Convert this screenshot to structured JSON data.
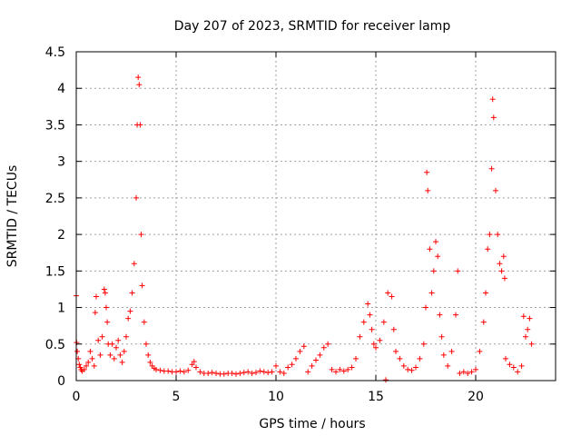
{
  "chart_data": {
    "type": "scatter",
    "title": "Day 207 of 2023, SRMTID for receiver lamp",
    "xlabel": "GPS time / hours",
    "ylabel": "SRMTID / TECUs",
    "xlim": [
      0,
      24
    ],
    "ylim": [
      0,
      4.5
    ],
    "grid": true,
    "marker": "+",
    "color": "#ff0000",
    "x_ticks": [
      0,
      5,
      10,
      15,
      20
    ],
    "x_tick_labels": [
      "0",
      "5",
      "10",
      "15",
      "20"
    ],
    "y_ticks": [
      0,
      0.5,
      1,
      1.5,
      2,
      2.5,
      3,
      3.5,
      4,
      4.5
    ],
    "y_tick_labels": [
      "0",
      "0.5",
      "1",
      "1.5",
      "2",
      "2.5",
      "3",
      "3.5",
      "4",
      "4.5"
    ],
    "series": [
      {
        "name": "SRMTID",
        "points": [
          [
            0.0,
            1.16
          ],
          [
            0.02,
            0.52
          ],
          [
            0.05,
            0.4
          ],
          [
            0.1,
            0.3
          ],
          [
            0.15,
            0.22
          ],
          [
            0.2,
            0.18
          ],
          [
            0.25,
            0.15
          ],
          [
            0.3,
            0.13
          ],
          [
            0.4,
            0.15
          ],
          [
            0.5,
            0.2
          ],
          [
            0.6,
            0.25
          ],
          [
            0.7,
            0.4
          ],
          [
            0.8,
            0.3
          ],
          [
            0.9,
            0.2
          ],
          [
            0.95,
            0.93
          ],
          [
            1.0,
            1.15
          ],
          [
            1.1,
            0.55
          ],
          [
            1.2,
            0.35
          ],
          [
            1.3,
            0.6
          ],
          [
            1.4,
            1.25
          ],
          [
            1.45,
            1.2
          ],
          [
            1.5,
            1.0
          ],
          [
            1.55,
            0.8
          ],
          [
            1.6,
            0.5
          ],
          [
            1.7,
            0.35
          ],
          [
            1.8,
            0.5
          ],
          [
            1.9,
            0.3
          ],
          [
            2.0,
            0.45
          ],
          [
            2.1,
            0.55
          ],
          [
            2.2,
            0.35
          ],
          [
            2.3,
            0.25
          ],
          [
            2.4,
            0.4
          ],
          [
            2.5,
            0.6
          ],
          [
            2.6,
            0.85
          ],
          [
            2.7,
            0.95
          ],
          [
            2.8,
            1.2
          ],
          [
            2.9,
            1.6
          ],
          [
            3.0,
            2.5
          ],
          [
            3.05,
            3.5
          ],
          [
            3.1,
            4.15
          ],
          [
            3.15,
            4.05
          ],
          [
            3.2,
            3.5
          ],
          [
            3.25,
            2.0
          ],
          [
            3.3,
            1.3
          ],
          [
            3.4,
            0.8
          ],
          [
            3.5,
            0.5
          ],
          [
            3.6,
            0.35
          ],
          [
            3.7,
            0.25
          ],
          [
            3.8,
            0.2
          ],
          [
            3.9,
            0.17
          ],
          [
            4.0,
            0.15
          ],
          [
            4.2,
            0.14
          ],
          [
            4.4,
            0.13
          ],
          [
            4.6,
            0.13
          ],
          [
            4.8,
            0.12
          ],
          [
            5.0,
            0.12
          ],
          [
            5.2,
            0.13
          ],
          [
            5.4,
            0.12
          ],
          [
            5.6,
            0.14
          ],
          [
            5.8,
            0.22
          ],
          [
            5.9,
            0.26
          ],
          [
            6.0,
            0.18
          ],
          [
            6.2,
            0.12
          ],
          [
            6.4,
            0.1
          ],
          [
            6.6,
            0.1
          ],
          [
            6.8,
            0.11
          ],
          [
            7.0,
            0.1
          ],
          [
            7.2,
            0.09
          ],
          [
            7.4,
            0.09
          ],
          [
            7.6,
            0.1
          ],
          [
            7.8,
            0.1
          ],
          [
            8.0,
            0.09
          ],
          [
            8.2,
            0.1
          ],
          [
            8.4,
            0.11
          ],
          [
            8.6,
            0.12
          ],
          [
            8.8,
            0.1
          ],
          [
            9.0,
            0.11
          ],
          [
            9.2,
            0.13
          ],
          [
            9.4,
            0.12
          ],
          [
            9.6,
            0.11
          ],
          [
            9.8,
            0.12
          ],
          [
            10.0,
            0.2
          ],
          [
            10.2,
            0.12
          ],
          [
            10.4,
            0.1
          ],
          [
            10.6,
            0.18
          ],
          [
            10.8,
            0.22
          ],
          [
            11.0,
            0.3
          ],
          [
            11.2,
            0.4
          ],
          [
            11.4,
            0.47
          ],
          [
            11.6,
            0.12
          ],
          [
            11.8,
            0.2
          ],
          [
            12.0,
            0.28
          ],
          [
            12.2,
            0.35
          ],
          [
            12.4,
            0.45
          ],
          [
            12.6,
            0.5
          ],
          [
            12.8,
            0.15
          ],
          [
            13.0,
            0.12
          ],
          [
            13.2,
            0.15
          ],
          [
            13.4,
            0.13
          ],
          [
            13.6,
            0.15
          ],
          [
            13.8,
            0.18
          ],
          [
            14.0,
            0.3
          ],
          [
            14.2,
            0.6
          ],
          [
            14.4,
            0.8
          ],
          [
            14.6,
            1.05
          ],
          [
            14.7,
            0.9
          ],
          [
            14.8,
            0.7
          ],
          [
            14.9,
            0.5
          ],
          [
            15.0,
            0.45
          ],
          [
            15.2,
            0.55
          ],
          [
            15.4,
            0.8
          ],
          [
            15.5,
            0.01
          ],
          [
            15.6,
            1.2
          ],
          [
            15.8,
            1.15
          ],
          [
            15.9,
            0.7
          ],
          [
            16.0,
            0.4
          ],
          [
            16.2,
            0.3
          ],
          [
            16.4,
            0.2
          ],
          [
            16.6,
            0.15
          ],
          [
            16.8,
            0.14
          ],
          [
            17.0,
            0.18
          ],
          [
            17.2,
            0.3
          ],
          [
            17.4,
            0.5
          ],
          [
            17.5,
            1.0
          ],
          [
            17.55,
            2.85
          ],
          [
            17.6,
            2.6
          ],
          [
            17.7,
            1.8
          ],
          [
            17.8,
            1.2
          ],
          [
            17.9,
            1.5
          ],
          [
            18.0,
            1.9
          ],
          [
            18.1,
            1.7
          ],
          [
            18.2,
            0.9
          ],
          [
            18.3,
            0.6
          ],
          [
            18.4,
            0.35
          ],
          [
            18.6,
            0.2
          ],
          [
            18.8,
            0.4
          ],
          [
            19.0,
            0.9
          ],
          [
            19.1,
            1.5
          ],
          [
            19.2,
            0.1
          ],
          [
            19.4,
            0.12
          ],
          [
            19.6,
            0.1
          ],
          [
            19.8,
            0.12
          ],
          [
            20.0,
            0.15
          ],
          [
            20.2,
            0.4
          ],
          [
            20.4,
            0.8
          ],
          [
            20.5,
            1.2
          ],
          [
            20.6,
            1.8
          ],
          [
            20.7,
            2.0
          ],
          [
            20.8,
            2.9
          ],
          [
            20.85,
            3.85
          ],
          [
            20.9,
            3.6
          ],
          [
            21.0,
            2.6
          ],
          [
            21.1,
            2.0
          ],
          [
            21.2,
            1.6
          ],
          [
            21.3,
            1.5
          ],
          [
            21.4,
            1.7
          ],
          [
            21.45,
            1.4
          ],
          [
            21.5,
            0.3
          ],
          [
            21.7,
            0.22
          ],
          [
            21.9,
            0.18
          ],
          [
            22.1,
            0.12
          ],
          [
            22.3,
            0.2
          ],
          [
            22.4,
            0.88
          ],
          [
            22.5,
            0.6
          ],
          [
            22.6,
            0.7
          ],
          [
            22.7,
            0.85
          ],
          [
            22.8,
            0.5
          ]
        ]
      }
    ]
  }
}
